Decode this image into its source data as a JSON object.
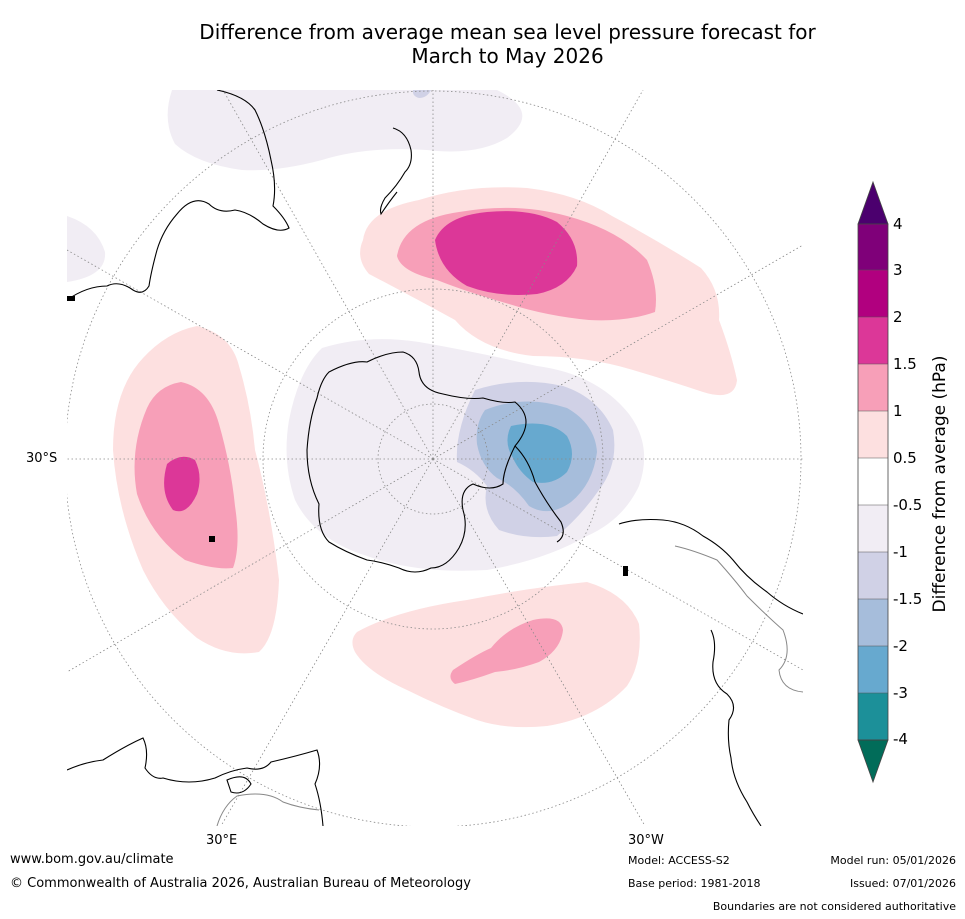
{
  "title": {
    "line1": "Difference from average mean sea level pressure forecast for",
    "line2": "March to May 2026"
  },
  "map": {
    "graticule_labels": {
      "lat_30s": "30°S",
      "lon_30e": "30°E",
      "lon_30w": "30°W"
    }
  },
  "colorbar": {
    "title": "Difference from average (hPa)",
    "ticks": [
      "4",
      "3",
      "2",
      "1.5",
      "1",
      "0.5",
      "-0.5",
      "-1",
      "-1.5",
      "-2",
      "-3",
      "-4"
    ],
    "colors": {
      "above_4": "#4b006e",
      "3_to_4": "#7f0079",
      "2_to_3": "#b1007f",
      "1.5_to_2": "#dc3798",
      "1_to_1.5": "#f79fb8",
      "0.5_to_1": "#fde0e0",
      "neutral": "#ffffff",
      "-1_to_-0.5": "#f1edf4",
      "-1.5_to_-1": "#d0d1e6",
      "-2_to_-1.5": "#a6bddb",
      "-3_to_-2": "#67a9cf",
      "-4_to_-3": "#1c9099",
      "below_-4": "#016c59"
    }
  },
  "footer": {
    "website": "www.bom.gov.au/climate",
    "copyright": "© Commonwealth of Australia 2026, Australian Bureau of Meteorology",
    "model": "Model: ACCESS-S2",
    "base_period": "Base period: 1981-2018",
    "model_run": "Model run: 05/01/2026",
    "issued": "Issued: 07/01/2026",
    "disclaimer": "Boundaries are not considered authoritative"
  }
}
